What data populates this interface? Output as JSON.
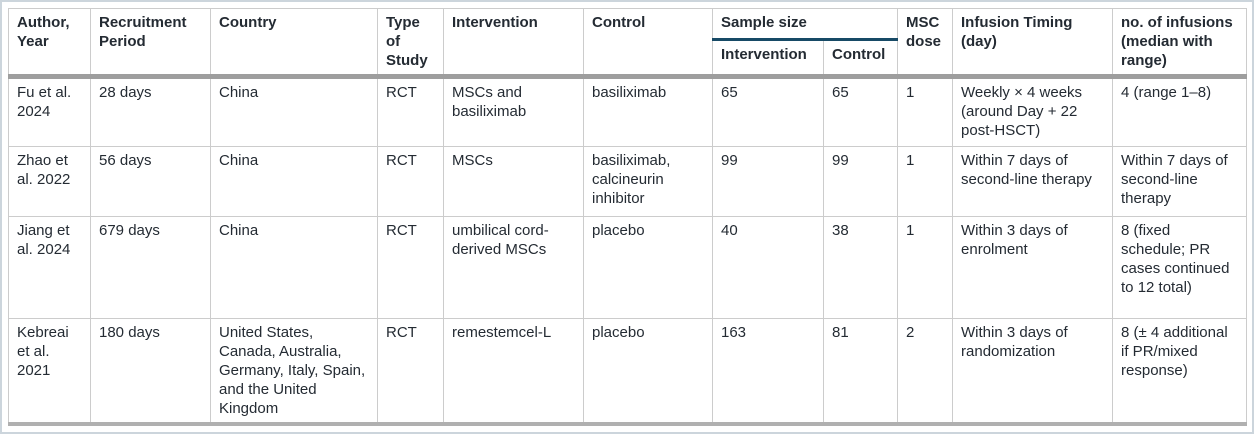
{
  "page": {
    "type": "clinical-studies-characteristics-table"
  },
  "colors": {
    "text": "#242b33",
    "grid_line": "#cccccc",
    "header_separator": "#9e9e9e",
    "sample_size_underline": "#174a66",
    "table_bottom_border": "#b0b0b0",
    "outer_frame": "#ccd5dc"
  },
  "table": {
    "header": {
      "author_year": "Author, Year",
      "recruitment_period": "Recruitment Period",
      "country": "Country",
      "type_of_study": "Type of Study",
      "intervention": "Intervention",
      "control": "Control",
      "sample_size_group": "Sample size",
      "sample_size_intervention": "Intervention",
      "sample_size_control": "Control",
      "msc_dose": "MSC dose",
      "infusion_timing": "Infusion Timing (day)",
      "no_of_infusions": "no. of infusions (median with range)"
    },
    "rows": [
      [
        "Fu et al. 2024",
        "28 days",
        "China",
        "RCT",
        "MSCs and basiliximab",
        "basiliximab",
        "65",
        "65",
        "1",
        "Weekly × 4 weeks (around Day + 22 post-HSCT)",
        "4 (range 1–8)"
      ],
      [
        "Zhao et al. 2022",
        "56 days",
        "China",
        "RCT",
        "MSCs",
        "basiliximab, calcineurin inhibitor",
        "99",
        "99",
        "1",
        "Within 7 days of second-line therapy",
        "Within 7 days of second-line therapy"
      ],
      [
        "Jiang et al. 2024",
        "679 days",
        "China",
        "RCT",
        "umbilical cord-derived MSCs",
        "placebo",
        "40",
        "38",
        "1",
        "Within 3 days of enrolment",
        "8 (fixed schedule; PR cases continued to 12 total)"
      ],
      [
        "Kebreai et al. 2021",
        "180 days",
        "United States, Canada, Australia, Germany, Italy, Spain, and the United Kingdom",
        "RCT",
        "remestemcel-L",
        "placebo",
        "163",
        "81",
        "2",
        "Within 3 days of randomization",
        "8 (± 4 additional if PR/mixed response)"
      ]
    ]
  }
}
